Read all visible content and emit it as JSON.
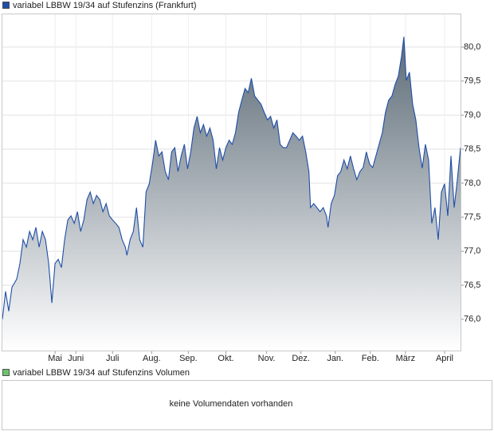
{
  "chart_data": [
    {
      "type": "area",
      "series": [
        {
          "name": "variabel LBBW 19/34 auf Stufenzins (Frankfurt)",
          "color": "#1f4ea8",
          "fill": "#5b6a76",
          "x": [
            0,
            4,
            8,
            12,
            18,
            22,
            26,
            30,
            34,
            38,
            42,
            46,
            50,
            54,
            58,
            62,
            66,
            70,
            74,
            78,
            82,
            86,
            90,
            94,
            98,
            102,
            106,
            110,
            114,
            118,
            122,
            126,
            130,
            134,
            138,
            142,
            146,
            150,
            154,
            156,
            160,
            164,
            168,
            172,
            176,
            180,
            184,
            188,
            192,
            196,
            200,
            204,
            208,
            212,
            216,
            220,
            224,
            228,
            232,
            236,
            240,
            244,
            248,
            252,
            256,
            260,
            264,
            268,
            272,
            276,
            280,
            284,
            288,
            292,
            296,
            300,
            304,
            308,
            312,
            316,
            320,
            324,
            328,
            332,
            336,
            340,
            344,
            348,
            352,
            356,
            360,
            364,
            368,
            372,
            376,
            380,
            384,
            386,
            390,
            394,
            398,
            402,
            406,
            408,
            412,
            416,
            420,
            424,
            428,
            432,
            436,
            440,
            444,
            448,
            452,
            456,
            460,
            464,
            468,
            472,
            476,
            480,
            484,
            488,
            492,
            496,
            500,
            503,
            506,
            510,
            514,
            518,
            522,
            526,
            530,
            534,
            538,
            542,
            546,
            550,
            554,
            558,
            562,
            566,
            570,
            574
          ],
          "values": [
            76.0,
            76.41,
            76.12,
            76.47,
            76.59,
            76.82,
            77.17,
            77.06,
            77.29,
            77.17,
            77.35,
            77.06,
            77.29,
            77.17,
            76.82,
            76.24,
            76.82,
            76.88,
            76.76,
            77.17,
            77.46,
            77.52,
            77.41,
            77.58,
            77.29,
            77.46,
            77.76,
            77.87,
            77.7,
            77.82,
            77.76,
            77.58,
            77.7,
            77.52,
            77.46,
            77.41,
            77.35,
            77.17,
            77.06,
            76.94,
            77.17,
            77.29,
            77.64,
            77.17,
            77.06,
            77.87,
            77.99,
            78.28,
            78.63,
            78.4,
            78.46,
            78.17,
            78.05,
            78.46,
            78.52,
            78.17,
            78.4,
            78.57,
            78.21,
            78.46,
            78.81,
            78.98,
            78.74,
            78.86,
            78.69,
            78.81,
            78.63,
            78.21,
            78.52,
            78.34,
            78.52,
            78.63,
            78.57,
            78.74,
            79.04,
            79.22,
            79.39,
            79.33,
            79.54,
            79.28,
            79.22,
            79.16,
            79.04,
            78.93,
            78.98,
            78.81,
            78.93,
            78.57,
            78.52,
            78.52,
            78.63,
            78.74,
            78.69,
            78.63,
            78.69,
            78.46,
            78.17,
            77.64,
            77.7,
            77.64,
            77.58,
            77.64,
            77.52,
            77.35,
            77.7,
            77.82,
            78.11,
            78.17,
            78.34,
            78.21,
            78.4,
            78.21,
            78.05,
            78.17,
            78.23,
            78.46,
            78.28,
            78.23,
            78.4,
            78.57,
            78.74,
            79.04,
            79.22,
            79.28,
            79.45,
            79.57,
            79.86,
            80.15,
            79.51,
            79.63,
            79.16,
            78.93,
            78.52,
            78.22,
            78.57,
            78.34,
            77.41,
            77.64,
            77.17,
            77.87,
            77.99,
            77.52,
            78.4,
            77.64,
            78.05,
            78.52
          ]
        }
      ],
      "xlim": [
        0,
        574
      ],
      "xticks": [
        {
          "value": 66,
          "label": "Mai"
        },
        {
          "value": 92,
          "label": "Juni"
        },
        {
          "value": 138,
          "label": "Juli"
        },
        {
          "value": 187,
          "label": "Aug."
        },
        {
          "value": 233,
          "label": "Sep."
        },
        {
          "value": 280,
          "label": "Okt."
        },
        {
          "value": 331,
          "label": "Nov."
        },
        {
          "value": 374,
          "label": "Dez."
        },
        {
          "value": 417,
          "label": "Jan."
        },
        {
          "value": 461,
          "label": "Feb."
        },
        {
          "value": 505,
          "label": "März"
        },
        {
          "value": 554,
          "label": "April"
        }
      ],
      "ylim": [
        75.54,
        80.48
      ],
      "yticks": [
        {
          "value": 76,
          "label": "76,0"
        },
        {
          "value": 76.5,
          "label": "76,5"
        },
        {
          "value": 77,
          "label": "77,0"
        },
        {
          "value": 77.5,
          "label": "77,5"
        },
        {
          "value": 78,
          "label": "78,0"
        },
        {
          "value": 78.5,
          "label": "78,5"
        },
        {
          "value": 79,
          "label": "79,0"
        },
        {
          "value": 79.5,
          "label": "79,5"
        },
        {
          "value": 80,
          "label": "80,0"
        }
      ],
      "grid": true
    },
    {
      "type": "volume",
      "series": [
        {
          "name": "variabel LBBW 19/34 auf Stufenzins Volumen",
          "color": "#6cc36a"
        }
      ],
      "message": "keine Volumendaten vorhanden"
    }
  ]
}
